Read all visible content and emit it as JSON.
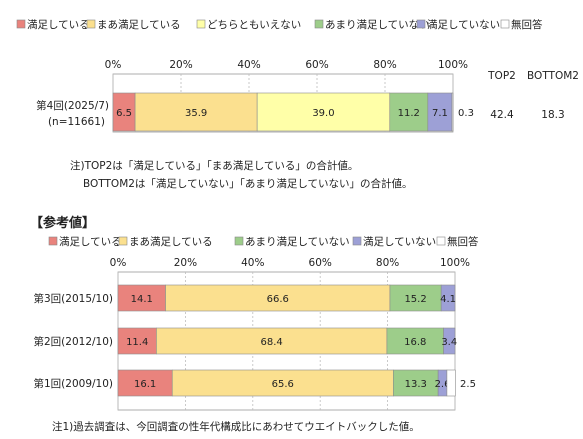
{
  "colors": {
    "satisfied": "#e9837d",
    "somewhat_satisfied": "#fbe08f",
    "neutral": "#ffffa8",
    "somewhat_unsatisfied": "#9dcd8a",
    "unsatisfied": "#9da0d6",
    "no_answer": "#ffffff"
  },
  "chart_data": [
    {
      "type": "bar",
      "orientation": "horizontal",
      "stacked": true,
      "xlim": [
        0,
        100
      ],
      "xticks": [
        "0%",
        "20%",
        "40%",
        "60%",
        "80%",
        "100%"
      ],
      "legend": [
        "満足している",
        "まあ満足している",
        "どちらともいえない",
        "あまり満足していない",
        "満足していない",
        "無回答"
      ],
      "categories": [
        "第4回(2025/7)"
      ],
      "category_sublabels": [
        "(n=11661)"
      ],
      "series": [
        {
          "name": "満足している",
          "values": [
            6.5
          ]
        },
        {
          "name": "まあ満足している",
          "values": [
            35.9
          ]
        },
        {
          "name": "どちらともいえない",
          "values": [
            39.0
          ]
        },
        {
          "name": "あまり満足していない",
          "values": [
            11.2
          ]
        },
        {
          "name": "満足していない",
          "values": [
            7.1
          ]
        },
        {
          "name": "無回答",
          "values": [
            0.3
          ]
        }
      ],
      "extra_columns": [
        {
          "header": "TOP2",
          "values": [
            "42.4"
          ]
        },
        {
          "header": "BOTTOM2",
          "values": [
            "18.3"
          ]
        }
      ],
      "notes": [
        "注)TOP2は「満足している」「まあ満足している」の合計値。",
        "BOTTOM2は「満足していない」「あまり満足していない」の合計値。"
      ]
    },
    {
      "type": "bar",
      "orientation": "horizontal",
      "stacked": true,
      "title": "【参考値】",
      "xlim": [
        0,
        100
      ],
      "xticks": [
        "0%",
        "20%",
        "40%",
        "60%",
        "80%",
        "100%"
      ],
      "legend": [
        "満足している",
        "まあ満足している",
        "あまり満足していない",
        "満足していない",
        "無回答"
      ],
      "categories": [
        "第3回(2015/10)",
        "第2回(2012/10)",
        "第1回(2009/10)"
      ],
      "series": [
        {
          "name": "満足している",
          "values": [
            14.1,
            11.4,
            16.1
          ]
        },
        {
          "name": "まあ満足している",
          "values": [
            66.6,
            68.4,
            65.6
          ]
        },
        {
          "name": "あまり満足していない",
          "values": [
            15.2,
            16.8,
            13.3
          ]
        },
        {
          "name": "満足していない",
          "values": [
            4.1,
            3.4,
            2.6
          ]
        },
        {
          "name": "無回答",
          "values": [
            0.0,
            0.0,
            2.5
          ]
        }
      ],
      "notes": [
        "注1)過去調査は、今回調査の性年代構成比にあわせてウエイトバックした値。"
      ]
    }
  ]
}
